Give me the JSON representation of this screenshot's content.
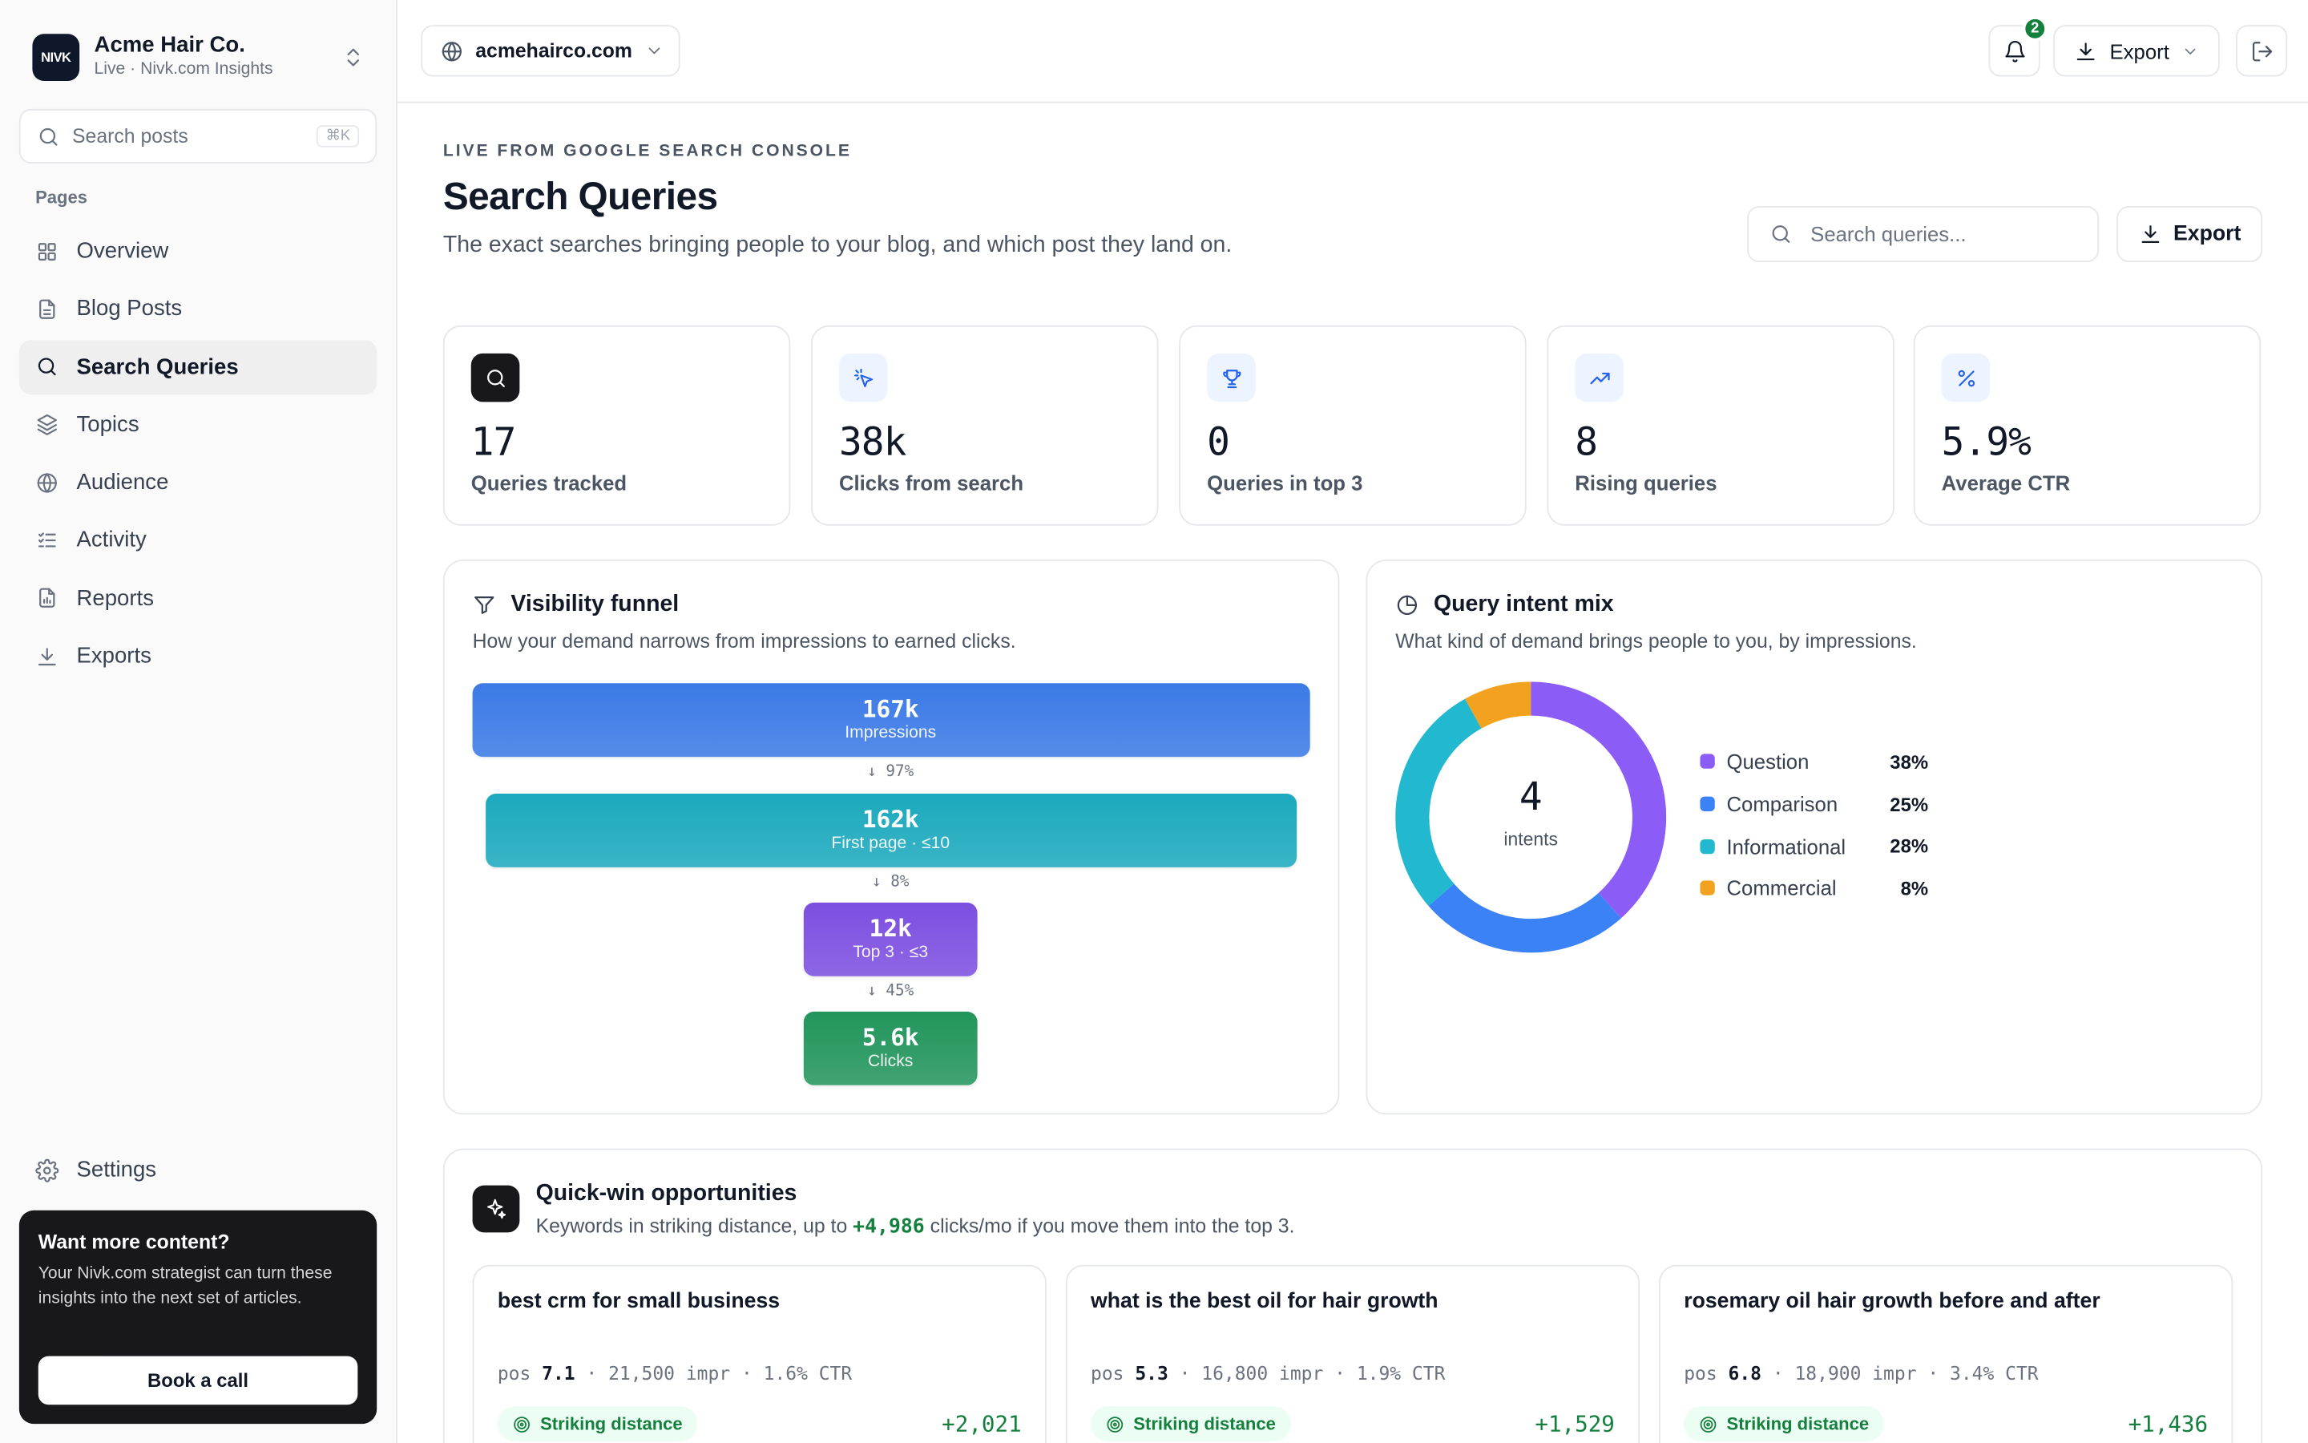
{
  "sidebar": {
    "brand_logo": "NIVK",
    "brand_name": "Acme Hair Co.",
    "brand_sub": "Live · Nivk.com Insights",
    "search_placeholder": "Search posts",
    "search_shortcut": "⌘K",
    "section_label": "Pages",
    "items": [
      {
        "label": "Overview",
        "icon": "grid-icon"
      },
      {
        "label": "Blog Posts",
        "icon": "document-icon"
      },
      {
        "label": "Search Queries",
        "icon": "search-icon",
        "active": true
      },
      {
        "label": "Topics",
        "icon": "layers-icon"
      },
      {
        "label": "Audience",
        "icon": "globe-icon"
      },
      {
        "label": "Activity",
        "icon": "checklist-icon"
      },
      {
        "label": "Reports",
        "icon": "report-icon"
      },
      {
        "label": "Exports",
        "icon": "download-icon"
      }
    ],
    "settings_label": "Settings",
    "promo": {
      "title": "Want more content?",
      "text": "Your Nivk.com strategist can turn these insights into the next set of articles.",
      "button": "Book a call"
    }
  },
  "topbar": {
    "site": "acmehairco.com",
    "notifications_count": "2",
    "export_label": "Export"
  },
  "header": {
    "eyebrow": "LIVE FROM GOOGLE SEARCH CONSOLE",
    "title": "Search Queries",
    "subtitle": "The exact searches bringing people to your blog, and which post they land on.",
    "search_placeholder": "Search queries...",
    "export_label": "Export"
  },
  "stats": [
    {
      "value": "17",
      "label": "Queries tracked",
      "icon": "search-icon"
    },
    {
      "value": "38k",
      "label": "Clicks from search",
      "icon": "cursor-click-icon"
    },
    {
      "value": "0",
      "label": "Queries in top 3",
      "icon": "trophy-icon"
    },
    {
      "value": "8",
      "label": "Rising queries",
      "icon": "trending-up-icon"
    },
    {
      "value": "5.9%",
      "label": "Average CTR",
      "icon": "percent-icon"
    }
  ],
  "funnel": {
    "title": "Visibility funnel",
    "subtitle": "How your demand narrows from impressions to earned clicks.",
    "stages": [
      {
        "value": "167k",
        "label": "Impressions",
        "amount": 167000,
        "color": "#3b7ae6"
      },
      {
        "value": "162k",
        "label": "First page · ≤10",
        "amount": 162000,
        "color": "#1ba9bd"
      },
      {
        "value": "12k",
        "label": "Top 3 · ≤3",
        "amount": 12000,
        "color": "#7c4fe0"
      },
      {
        "value": "5.6k",
        "label": "Clicks",
        "amount": 5600,
        "color": "#22955c"
      }
    ],
    "steps": [
      "↓ 97%",
      "↓ 8%",
      "↓ 45%"
    ]
  },
  "intent": {
    "title": "Query intent mix",
    "subtitle": "What kind of demand brings people to you, by impressions.",
    "center_value": "4",
    "center_label": "intents",
    "chart_data": {
      "type": "pie",
      "categories": [
        "Question",
        "Comparison",
        "Informational",
        "Commercial"
      ],
      "values": [
        38,
        25,
        28,
        8
      ],
      "labels": [
        "38%",
        "25%",
        "28%",
        "8%"
      ],
      "colors": [
        "#8b5cf6",
        "#3b82f6",
        "#22b8cf",
        "#f2a21e"
      ]
    }
  },
  "quickwin": {
    "title": "Quick-win opportunities",
    "subtitle_pre": "Keywords in striking distance, up to",
    "subtitle_highlight": "+4,986",
    "subtitle_post": "clicks/mo if you move them into the top 3.",
    "pos_label": "pos",
    "items": [
      {
        "query": "best crm for small business",
        "pos": "7.1",
        "impr": "· 21,500 impr",
        "ctr": "· 1.6% CTR",
        "badge": "Striking distance",
        "gain": "+2,021"
      },
      {
        "query": "what is the best oil for hair growth",
        "pos": "5.3",
        "impr": "· 16,800 impr",
        "ctr": "· 1.9% CTR",
        "badge": "Striking distance",
        "gain": "+1,529"
      },
      {
        "query": "rosemary oil hair growth before and after",
        "pos": "6.8",
        "impr": "· 18,900 impr",
        "ctr": "· 3.4% CTR",
        "badge": "Striking distance",
        "gain": "+1,436"
      }
    ]
  }
}
